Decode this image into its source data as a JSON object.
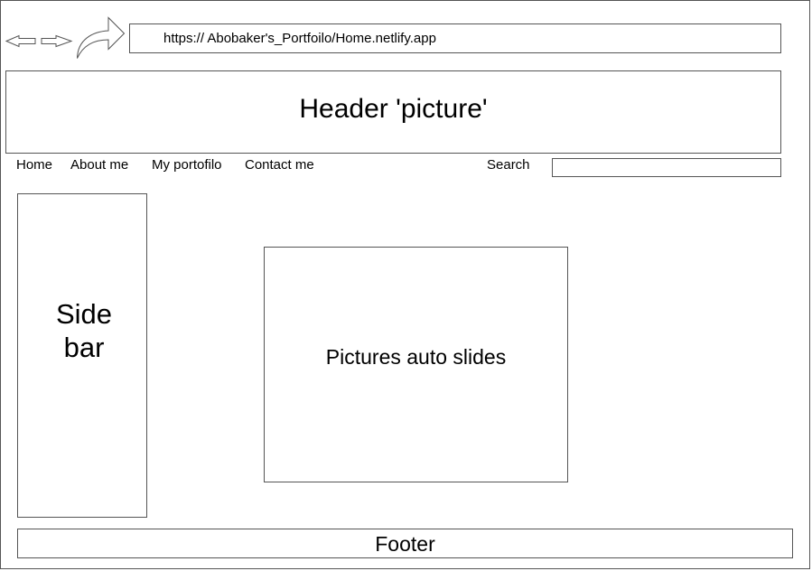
{
  "browser": {
    "back_icon": "arrow-left-icon",
    "forward_icon": "arrow-right-icon",
    "reload_icon": "curved-arrow-icon",
    "url": "https://  Abobaker's_Portfoilo/Home.netlify.app"
  },
  "header": {
    "title": "Header 'picture'"
  },
  "nav": {
    "items": [
      {
        "label": "Home"
      },
      {
        "label": "About me"
      },
      {
        "label": "My portofilo"
      },
      {
        "label": "Contact me"
      }
    ],
    "search_label": "Search",
    "search_value": ""
  },
  "sidebar": {
    "title": "Side bar"
  },
  "main": {
    "slides_label": "Pictures  auto slides"
  },
  "footer": {
    "text": "Footer"
  },
  "colors": {
    "stroke": "#555555",
    "background": "#ffffff"
  }
}
